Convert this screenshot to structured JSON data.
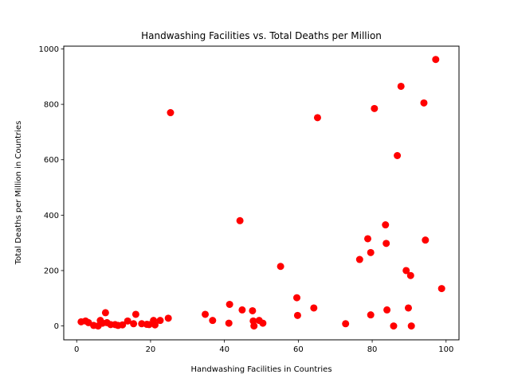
{
  "chart_data": {
    "type": "scatter",
    "title": "Handwashing Facilities vs. Total Deaths per Million",
    "xlabel": "Handwashing Facilities in Countries",
    "ylabel": "Total Deaths per Million in Countries",
    "xlim": [
      -3.5,
      103.5
    ],
    "ylim": [
      -50,
      1010
    ],
    "xticks": [
      0,
      20,
      40,
      60,
      80,
      100
    ],
    "yticks": [
      0,
      200,
      400,
      600,
      800,
      1000
    ],
    "grid": false,
    "marker_color": "#ff0000",
    "series": [
      {
        "x": [
          1.2,
          2.4,
          3.2,
          4.6,
          5.8,
          6.4,
          7.0,
          7.8,
          8.2,
          9.2,
          10.4,
          11.2,
          12.4,
          13.8,
          15.4,
          16.0,
          17.6,
          19.0,
          19.6,
          20.8,
          21.2,
          22.6,
          24.8,
          25.4,
          34.8,
          36.8,
          41.2,
          41.4,
          44.2,
          44.8,
          47.6,
          47.8,
          48.0,
          49.4,
          50.4,
          55.2,
          59.6,
          59.8,
          64.2,
          65.2,
          72.8,
          76.6,
          78.8,
          79.6,
          79.6,
          80.6,
          83.6,
          83.8,
          84.0,
          85.8,
          86.8,
          87.8,
          89.2,
          89.8,
          90.4,
          90.6,
          94.0,
          94.4,
          97.2,
          98.8
        ],
        "y": [
          15,
          18,
          12,
          2,
          0,
          20,
          10,
          48,
          12,
          5,
          5,
          2,
          4,
          18,
          8,
          42,
          8,
          6,
          5,
          20,
          4,
          20,
          28,
          770,
          42,
          20,
          10,
          78,
          380,
          58,
          55,
          18,
          0,
          20,
          10,
          215,
          102,
          38,
          65,
          752,
          8,
          240,
          315,
          265,
          40,
          785,
          365,
          298,
          58,
          0,
          615,
          865,
          200,
          65,
          182,
          0,
          805,
          310,
          962,
          135
        ]
      }
    ]
  }
}
